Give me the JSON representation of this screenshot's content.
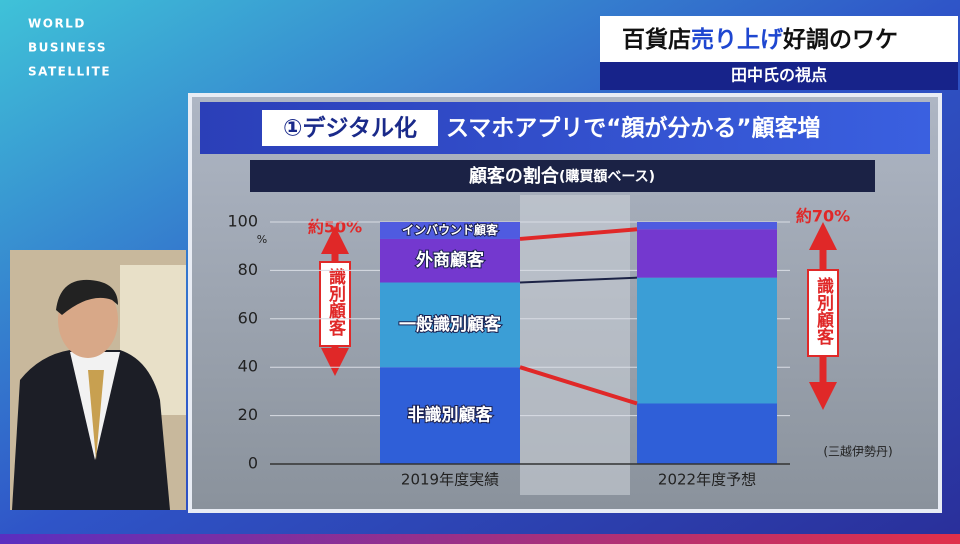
{
  "broadcast": {
    "logo": [
      "WORLD",
      "BUSINESS",
      "SATELLITE"
    ],
    "headline": [
      "百貨店",
      "売り上げ",
      "好調のワケ"
    ],
    "subheadline": "田中氏の視点"
  },
  "panel": {
    "number_tag": "①デジタル化",
    "heading": "スマホアプリで“顔が分かる”顧客増"
  },
  "chart_data": {
    "type": "bar",
    "stacked": true,
    "title": "顧客の割合",
    "subtitle": "(購買額ベース)",
    "y_unit": "%",
    "categories": [
      "2019年度実績",
      "2022年度予想"
    ],
    "series": [
      {
        "name": "非識別顧客",
        "color": "#2f5fd8",
        "values": [
          40,
          25
        ]
      },
      {
        "name": "一般識別顧客",
        "color": "#3b9ed6",
        "values": [
          35,
          52
        ]
      },
      {
        "name": "外商顧客",
        "color": "#7438cf",
        "values": [
          18,
          20
        ]
      },
      {
        "name": "インバウンド顧客",
        "color": "#4f5be0",
        "values": [
          7,
          3
        ]
      }
    ],
    "ylim": [
      0,
      100
    ],
    "yticks": [
      0,
      20,
      40,
      60,
      80,
      100
    ],
    "grid": true,
    "annotations": {
      "left_share": "約50%",
      "left_label": "識別顧客",
      "right_share": "約70%",
      "right_label": "識別顧客"
    },
    "source": "(三越伊勢丹)"
  }
}
